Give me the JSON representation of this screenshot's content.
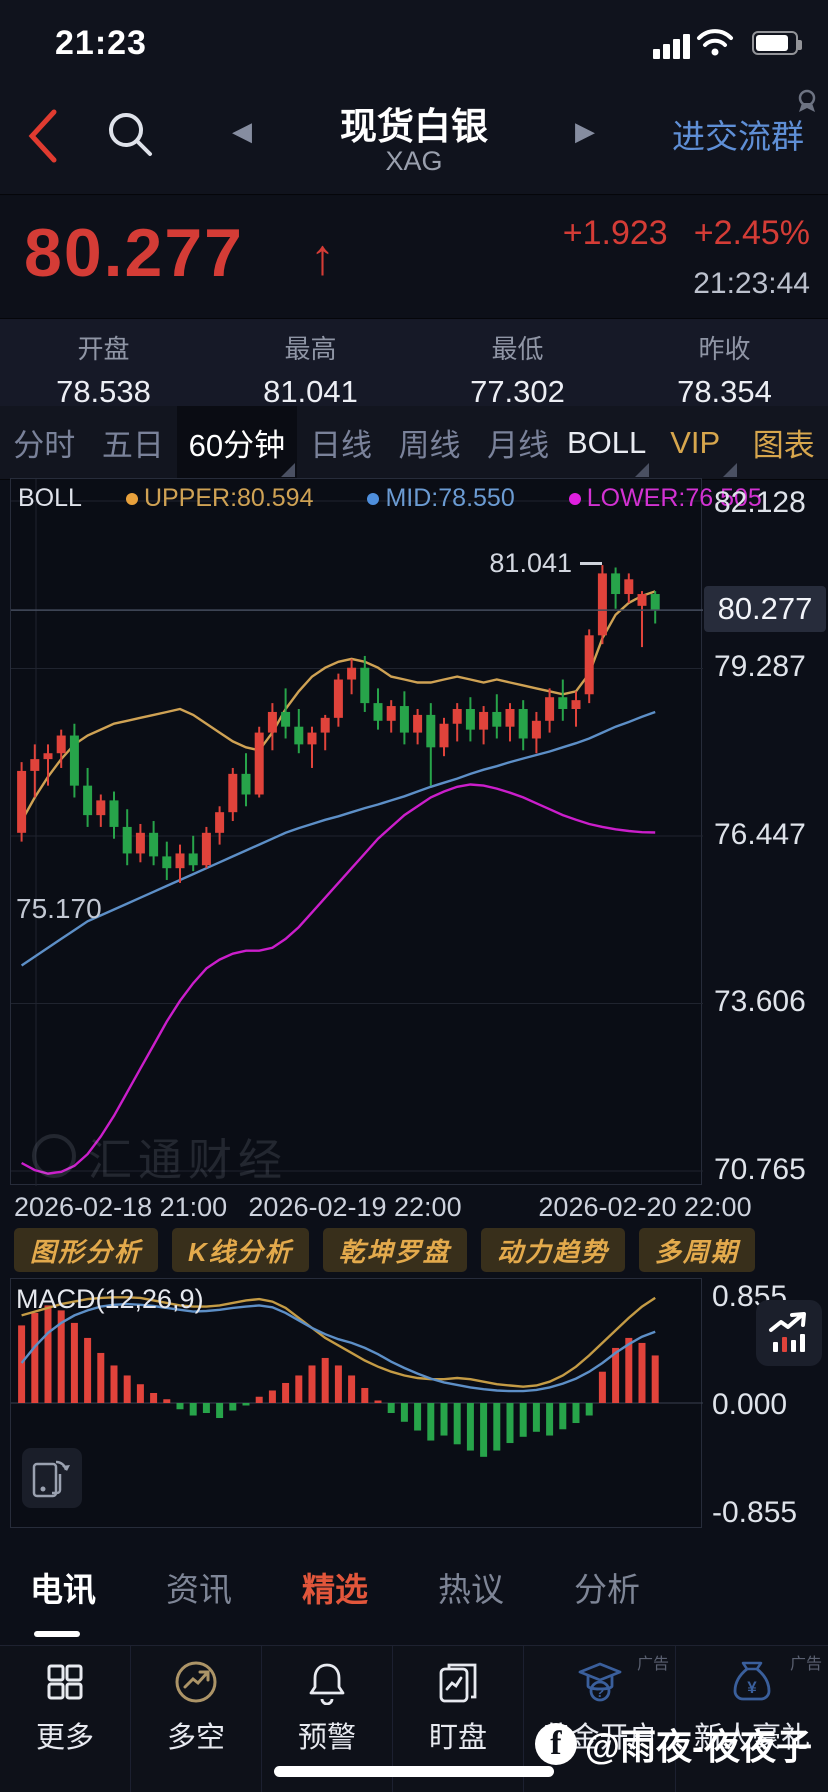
{
  "status_bar": {
    "time": "21:23"
  },
  "header": {
    "title": "现货白银",
    "symbol": "XAG",
    "community_link": "进交流群",
    "prev_glyph": "◀",
    "next_glyph": "▶"
  },
  "quote": {
    "price": "80.277",
    "up_arrow": "↑",
    "change": "+1.923",
    "change_pct": "+2.45%",
    "time": "21:23:44"
  },
  "ohlc": {
    "items": [
      {
        "label": "开盘",
        "value": "78.538"
      },
      {
        "label": "最高",
        "value": "81.041"
      },
      {
        "label": "最低",
        "value": "77.302"
      },
      {
        "label": "昨收",
        "value": "78.354"
      }
    ]
  },
  "period_tabs": {
    "items": [
      {
        "label": "分时"
      },
      {
        "label": "五日"
      },
      {
        "label": "60分钟"
      },
      {
        "label": "日线"
      },
      {
        "label": "周线"
      },
      {
        "label": "月线"
      },
      {
        "label": "BOLL"
      },
      {
        "label": "VIP"
      },
      {
        "label": "图表"
      }
    ]
  },
  "boll_legend": {
    "name": "BOLL",
    "upper": "UPPER:80.594",
    "mid": "MID:78.550",
    "lower": "LOWER:76.505"
  },
  "main_chart": {
    "y_labels": [
      "82.128",
      "79.287",
      "76.447",
      "73.606",
      "70.765"
    ],
    "current_price": "80.277",
    "high_annotation": "81.041",
    "low_annotation": "75.170",
    "watermark": "汇通财经",
    "x_labels": [
      "2026-02-18 21:00",
      "2026-02-19 22:00",
      "2026-02-20 22:00"
    ]
  },
  "analysis_buttons": {
    "items": [
      "图形分析",
      "K线分析",
      "乾坤罗盘",
      "动力趋势",
      "多周期"
    ]
  },
  "macd_panel": {
    "label": "MACD(12,26,9)",
    "y_labels": [
      "0.855",
      "0.000",
      "-0.855"
    ]
  },
  "news_tabs": {
    "items": [
      {
        "label": "电讯"
      },
      {
        "label": "资讯"
      },
      {
        "label": "精选"
      },
      {
        "label": "热议"
      },
      {
        "label": "分析"
      }
    ]
  },
  "bottom_nav": {
    "items": [
      {
        "label": "更多",
        "icon": "grid-icon"
      },
      {
        "label": "多空",
        "icon": "long-short-icon"
      },
      {
        "label": "预警",
        "icon": "bell-icon"
      },
      {
        "label": "盯盘",
        "icon": "monitor-icon"
      },
      {
        "label": "黄金开户",
        "icon": "gold-account-icon",
        "ad": "广告"
      },
      {
        "label": "新人豪礼",
        "icon": "newbie-gift-icon",
        "ad": "广告"
      }
    ]
  },
  "social_watermark": {
    "handle": "@雨夜-夜夜子"
  },
  "colors": {
    "up_red": "#e0433b",
    "down_green": "#27a44a",
    "price_red": "#d43c36",
    "boll_upper": "#cfa254",
    "boll_mid": "#5d8fc7",
    "boll_lower": "#cb1ecb",
    "macd_dif": "#5d8fc7",
    "macd_dea": "#c49b45",
    "gold_tab": "#d7a64d",
    "link_blue": "#5f8fd6",
    "grid": "#20242f",
    "cur_line": "#454c5e"
  },
  "chart_data": [
    {
      "type": "candlestick",
      "title": "现货白银 XAG 60分钟 BOLL",
      "x_labels": [
        "2026-02-18 21:00",
        "2026-02-19 22:00",
        "2026-02-20 22:00"
      ],
      "y_ticks": [
        82.128,
        79.287,
        76.447,
        73.606,
        70.765
      ],
      "ylim": [
        70.5,
        82.128
      ],
      "current_price": 80.277,
      "high_marker": 81.041,
      "low_marker": 75.17,
      "candles": [
        [
          76.5,
          77.7,
          76.35,
          77.55
        ],
        [
          77.55,
          78.0,
          77.1,
          77.75
        ],
        [
          77.75,
          78.0,
          77.3,
          77.85
        ],
        [
          77.85,
          78.25,
          77.6,
          78.15
        ],
        [
          78.15,
          78.35,
          77.1,
          77.3
        ],
        [
          77.3,
          77.6,
          76.6,
          76.8
        ],
        [
          76.8,
          77.15,
          76.6,
          77.05
        ],
        [
          77.05,
          77.2,
          76.4,
          76.6
        ],
        [
          76.6,
          76.9,
          75.95,
          76.15
        ],
        [
          76.15,
          76.65,
          76.0,
          76.5
        ],
        [
          76.5,
          76.7,
          75.95,
          76.1
        ],
        [
          76.1,
          76.35,
          75.7,
          75.9
        ],
        [
          75.9,
          76.3,
          75.65,
          76.15
        ],
        [
          76.15,
          76.45,
          75.85,
          75.95
        ],
        [
          75.95,
          76.6,
          75.9,
          76.5
        ],
        [
          76.5,
          76.95,
          76.3,
          76.85
        ],
        [
          76.85,
          77.6,
          76.7,
          77.5
        ],
        [
          77.5,
          77.85,
          76.95,
          77.15
        ],
        [
          77.15,
          78.3,
          77.1,
          78.2
        ],
        [
          78.2,
          78.7,
          77.9,
          78.55
        ],
        [
          78.55,
          78.95,
          78.1,
          78.3
        ],
        [
          78.3,
          78.6,
          77.85,
          78.0
        ],
        [
          78.0,
          78.3,
          77.6,
          78.2
        ],
        [
          78.2,
          78.5,
          77.9,
          78.45
        ],
        [
          78.45,
          79.2,
          78.3,
          79.1
        ],
        [
          79.1,
          79.45,
          78.85,
          79.3
        ],
        [
          79.3,
          79.5,
          78.55,
          78.7
        ],
        [
          78.7,
          78.95,
          78.25,
          78.4
        ],
        [
          78.4,
          78.75,
          78.2,
          78.65
        ],
        [
          78.65,
          78.9,
          78.0,
          78.2
        ],
        [
          78.2,
          78.6,
          78.0,
          78.5
        ],
        [
          78.5,
          78.7,
          77.3,
          77.95
        ],
        [
          77.95,
          78.45,
          77.8,
          78.35
        ],
        [
          78.35,
          78.7,
          78.05,
          78.6
        ],
        [
          78.6,
          78.8,
          78.05,
          78.25
        ],
        [
          78.25,
          78.65,
          78.0,
          78.55
        ],
        [
          78.55,
          78.85,
          78.1,
          78.3
        ],
        [
          78.3,
          78.7,
          78.05,
          78.6
        ],
        [
          78.6,
          78.75,
          77.9,
          78.1
        ],
        [
          78.1,
          78.55,
          77.85,
          78.4
        ],
        [
          78.4,
          78.95,
          78.2,
          78.8
        ],
        [
          78.8,
          79.1,
          78.4,
          78.6
        ],
        [
          78.6,
          78.9,
          78.3,
          78.75
        ],
        [
          78.85,
          79.95,
          78.7,
          79.85
        ],
        [
          79.85,
          81.041,
          79.7,
          80.9
        ],
        [
          80.9,
          81.0,
          80.3,
          80.55
        ],
        [
          80.55,
          80.9,
          80.4,
          80.8
        ],
        [
          80.35,
          80.6,
          79.65,
          80.55
        ],
        [
          80.55,
          80.6,
          80.05,
          80.277
        ]
      ],
      "overlays": [
        {
          "name": "UPPER",
          "current": 80.594,
          "color": "#cfa254",
          "values": [
            76.7,
            77.1,
            77.45,
            77.75,
            78.0,
            78.15,
            78.25,
            78.35,
            78.4,
            78.45,
            78.5,
            78.55,
            78.6,
            78.5,
            78.35,
            78.2,
            78.05,
            77.95,
            77.9,
            78.2,
            78.6,
            78.9,
            79.15,
            79.3,
            79.4,
            79.45,
            79.4,
            79.3,
            79.15,
            79.1,
            79.05,
            79.05,
            79.1,
            79.15,
            79.1,
            79.05,
            79.1,
            79.05,
            79.0,
            78.95,
            78.9,
            78.85,
            78.9,
            79.2,
            79.8,
            80.2,
            80.4,
            80.52,
            80.594
          ]
        },
        {
          "name": "MID",
          "current": 78.55,
          "color": "#5d8fc7",
          "values": [
            74.25,
            74.4,
            74.55,
            74.7,
            74.85,
            75.0,
            75.1,
            75.2,
            75.3,
            75.4,
            75.5,
            75.6,
            75.7,
            75.8,
            75.9,
            76.0,
            76.1,
            76.2,
            76.3,
            76.4,
            76.5,
            76.58,
            76.65,
            76.72,
            76.78,
            76.85,
            76.92,
            76.98,
            77.05,
            77.12,
            77.2,
            77.28,
            77.35,
            77.42,
            77.5,
            77.57,
            77.63,
            77.7,
            77.76,
            77.82,
            77.88,
            77.95,
            78.02,
            78.1,
            78.2,
            78.3,
            78.38,
            78.47,
            78.55
          ]
        },
        {
          "name": "LOWER",
          "current": 76.505,
          "color": "#cb1ecb",
          "values": [
            70.9,
            70.78,
            70.72,
            70.75,
            70.85,
            71.05,
            71.35,
            71.7,
            72.1,
            72.5,
            72.9,
            73.3,
            73.65,
            73.95,
            74.2,
            74.35,
            74.45,
            74.5,
            74.5,
            74.55,
            74.7,
            74.9,
            75.15,
            75.4,
            75.65,
            75.9,
            76.15,
            76.4,
            76.6,
            76.8,
            76.95,
            77.1,
            77.2,
            77.28,
            77.32,
            77.3,
            77.25,
            77.18,
            77.1,
            77.0,
            76.9,
            76.8,
            76.72,
            76.65,
            76.6,
            76.56,
            76.53,
            76.51,
            76.505
          ]
        }
      ]
    },
    {
      "type": "macd",
      "title": "MACD(12,26,9)",
      "ylim": [
        -0.855,
        0.855
      ],
      "y_ticks": [
        0.855,
        0.0,
        -0.855
      ],
      "histogram": [
        0.62,
        0.72,
        0.78,
        0.74,
        0.64,
        0.52,
        0.4,
        0.3,
        0.22,
        0.15,
        0.08,
        0.03,
        -0.05,
        -0.1,
        -0.08,
        -0.12,
        -0.06,
        -0.02,
        0.05,
        0.1,
        0.16,
        0.22,
        0.3,
        0.36,
        0.3,
        0.22,
        0.12,
        0.02,
        -0.08,
        -0.15,
        -0.22,
        -0.3,
        -0.26,
        -0.33,
        -0.38,
        -0.43,
        -0.38,
        -0.32,
        -0.27,
        -0.23,
        -0.26,
        -0.21,
        -0.16,
        -0.1,
        0.25,
        0.44,
        0.52,
        0.48,
        0.38
      ],
      "dif": [
        0.32,
        0.45,
        0.56,
        0.64,
        0.7,
        0.74,
        0.77,
        0.785,
        0.79,
        0.785,
        0.775,
        0.76,
        0.745,
        0.73,
        0.735,
        0.745,
        0.76,
        0.77,
        0.78,
        0.765,
        0.72,
        0.66,
        0.6,
        0.55,
        0.51,
        0.48,
        0.44,
        0.39,
        0.33,
        0.28,
        0.235,
        0.195,
        0.165,
        0.145,
        0.125,
        0.11,
        0.1,
        0.095,
        0.095,
        0.105,
        0.125,
        0.155,
        0.195,
        0.25,
        0.32,
        0.4,
        0.47,
        0.53,
        0.57
      ],
      "dea": [
        0.7,
        0.73,
        0.76,
        0.79,
        0.81,
        0.83,
        0.84,
        0.845,
        0.845,
        0.84,
        0.82,
        0.8,
        0.78,
        0.77,
        0.77,
        0.78,
        0.8,
        0.82,
        0.83,
        0.81,
        0.76,
        0.68,
        0.6,
        0.52,
        0.46,
        0.4,
        0.34,
        0.29,
        0.25,
        0.22,
        0.2,
        0.19,
        0.19,
        0.2,
        0.19,
        0.17,
        0.15,
        0.14,
        0.13,
        0.14,
        0.17,
        0.22,
        0.29,
        0.38,
        0.48,
        0.58,
        0.68,
        0.77,
        0.84
      ]
    }
  ]
}
